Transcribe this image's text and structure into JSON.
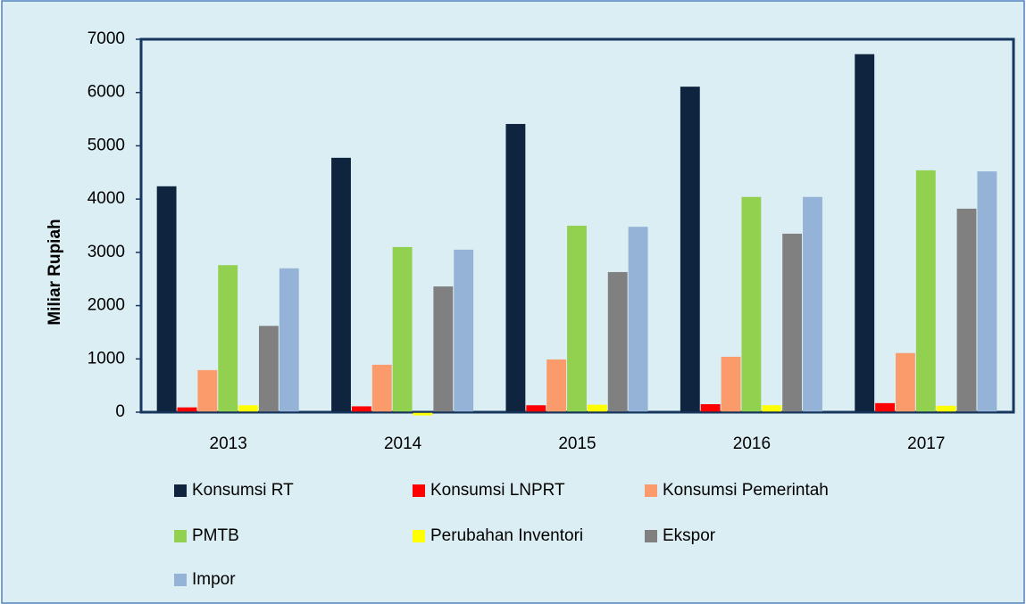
{
  "chart_data": {
    "type": "bar",
    "y_label": "Miliar Rupiah",
    "categories": [
      "2013",
      "2014",
      "2015",
      "2016",
      "2017"
    ],
    "series": [
      {
        "name": "Konsumsi RT",
        "color": "#0f243e",
        "values": [
          4240,
          4775,
          5410,
          6110,
          6720
        ]
      },
      {
        "name": "Konsumsi LNPRT",
        "color": "#ff0000",
        "values": [
          90,
          110,
          130,
          150,
          170
        ]
      },
      {
        "name": "Konsumsi Pemerintah",
        "color": "#fb9b6b",
        "values": [
          790,
          890,
          990,
          1040,
          1110
        ]
      },
      {
        "name": "PMTB",
        "color": "#92d050",
        "values": [
          2760,
          3100,
          3500,
          4040,
          4540
        ]
      },
      {
        "name": "Perubahan Inventori",
        "color": "#ffff00",
        "values": [
          130,
          -60,
          140,
          130,
          120
        ]
      },
      {
        "name": "Ekspor",
        "color": "#808080",
        "values": [
          1620,
          2360,
          2630,
          3350,
          3820
        ]
      },
      {
        "name": "Impor",
        "color": "#95b3d7",
        "values": [
          2700,
          3050,
          3480,
          4040,
          4520
        ]
      }
    ],
    "ylim": [
      0,
      7000
    ],
    "yticks": [
      0,
      1000,
      2000,
      3000,
      4000,
      5000,
      6000,
      7000
    ],
    "grid": false,
    "legend": "bottom"
  }
}
